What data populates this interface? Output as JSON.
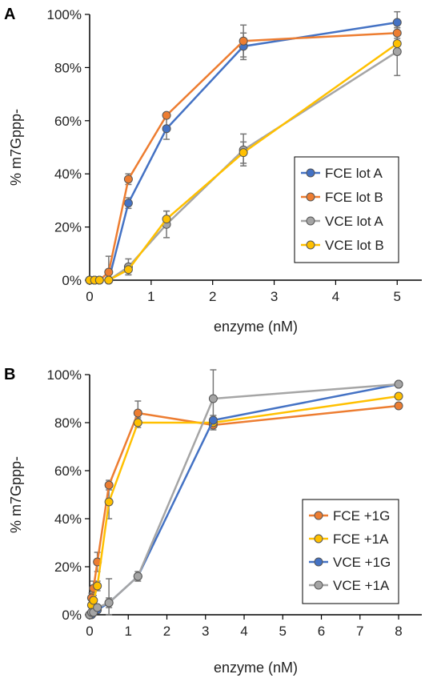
{
  "chart_data": [
    {
      "panel_label": "A",
      "type": "line",
      "xlabel": "enzyme (nM)",
      "ylabel": "% m7Gppp-",
      "xlim": [
        0,
        5.4
      ],
      "ylim": [
        0,
        1.0
      ],
      "x_ticks": [
        0,
        1,
        2,
        3,
        4,
        5
      ],
      "y_ticks": [
        0,
        0.2,
        0.4,
        0.6,
        0.8,
        1.0
      ],
      "y_tick_labels": [
        "0%",
        "20%",
        "40%",
        "60%",
        "80%",
        "100%"
      ],
      "legend_position": "right",
      "grid": false,
      "series": [
        {
          "name": "FCE lot A",
          "color": "#4472c4",
          "x": [
            0,
            0.08,
            0.16,
            0.31,
            0.63,
            1.25,
            2.5,
            5
          ],
          "y": [
            0,
            0,
            0,
            0,
            0.29,
            0.57,
            0.88,
            0.97
          ],
          "err": [
            0,
            0,
            0,
            0.01,
            0.02,
            0.04,
            0.05,
            0.04
          ]
        },
        {
          "name": "FCE lot B",
          "color": "#ed7d31",
          "x": [
            0,
            0.08,
            0.16,
            0.31,
            0.63,
            1.25,
            2.5,
            5
          ],
          "y": [
            0,
            0,
            0,
            0.03,
            0.38,
            0.62,
            0.9,
            0.93
          ],
          "err": [
            0,
            0,
            0,
            0.06,
            0.02,
            0.01,
            0.06,
            0.02
          ]
        },
        {
          "name": "VCE lot A",
          "color": "#a5a5a5",
          "x": [
            0,
            0.08,
            0.16,
            0.31,
            0.63,
            1.25,
            2.5,
            5
          ],
          "y": [
            0,
            0,
            0,
            0,
            0.05,
            0.21,
            0.49,
            0.86
          ],
          "err": [
            0,
            0,
            0,
            0.01,
            0.03,
            0.05,
            0.06,
            0.09
          ]
        },
        {
          "name": "VCE lot B",
          "color": "#ffc000",
          "x": [
            0,
            0.08,
            0.16,
            0.31,
            0.63,
            1.25,
            2.5,
            5
          ],
          "y": [
            0,
            0,
            0,
            0,
            0.04,
            0.23,
            0.48,
            0.89
          ],
          "err": [
            0,
            0,
            0,
            0,
            0.02,
            0.03,
            0.04,
            0.04
          ]
        }
      ]
    },
    {
      "panel_label": "B",
      "type": "line",
      "xlabel": "enzyme (nM)",
      "ylabel": "% m7Gppp-",
      "xlim": [
        0,
        8.6
      ],
      "ylim": [
        0,
        1.0
      ],
      "x_ticks": [
        0,
        1,
        2,
        3,
        4,
        5,
        6,
        7,
        8
      ],
      "y_ticks": [
        0,
        0.2,
        0.4,
        0.6,
        0.8,
        1.0
      ],
      "y_tick_labels": [
        "0%",
        "20%",
        "40%",
        "60%",
        "80%",
        "100%"
      ],
      "legend_position": "right",
      "grid": false,
      "series": [
        {
          "name": "FCE +1G",
          "color": "#ed7d31",
          "x": [
            0,
            0.05,
            0.1,
            0.2,
            0.5,
            1.25,
            3.2,
            8
          ],
          "y": [
            0,
            0.07,
            0.11,
            0.22,
            0.54,
            0.84,
            0.79,
            0.87
          ],
          "err": [
            0,
            0.02,
            0.03,
            0.04,
            0.02,
            0.05,
            0.02,
            0.01
          ]
        },
        {
          "name": "FCE +1A",
          "color": "#ffc000",
          "x": [
            0,
            0.05,
            0.1,
            0.2,
            0.5,
            1.25,
            3.2,
            8
          ],
          "y": [
            0,
            0.04,
            0.06,
            0.12,
            0.47,
            0.8,
            0.8,
            0.91
          ],
          "err": [
            0,
            0.02,
            0.02,
            0.02,
            0.07,
            0.02,
            0.02,
            0.01
          ]
        },
        {
          "name": "VCE +1G",
          "color": "#4472c4",
          "x": [
            0,
            0.05,
            0.1,
            0.2,
            0.5,
            1.25,
            3.2,
            8
          ],
          "y": [
            0,
            0,
            0.01,
            0.02,
            0.05,
            0.16,
            0.81,
            0.96
          ],
          "err": [
            0,
            0,
            0.01,
            0.01,
            0.02,
            0.01,
            0.02,
            0.01
          ]
        },
        {
          "name": "VCE +1A",
          "color": "#a5a5a5",
          "x": [
            0,
            0.05,
            0.1,
            0.2,
            0.5,
            1.25,
            3.2,
            8
          ],
          "y": [
            0,
            0.01,
            0.01,
            0.03,
            0.05,
            0.16,
            0.9,
            0.96
          ],
          "err": [
            0,
            0.02,
            0.01,
            0.01,
            0.1,
            0.02,
            0.12,
            0.01
          ]
        }
      ]
    }
  ]
}
